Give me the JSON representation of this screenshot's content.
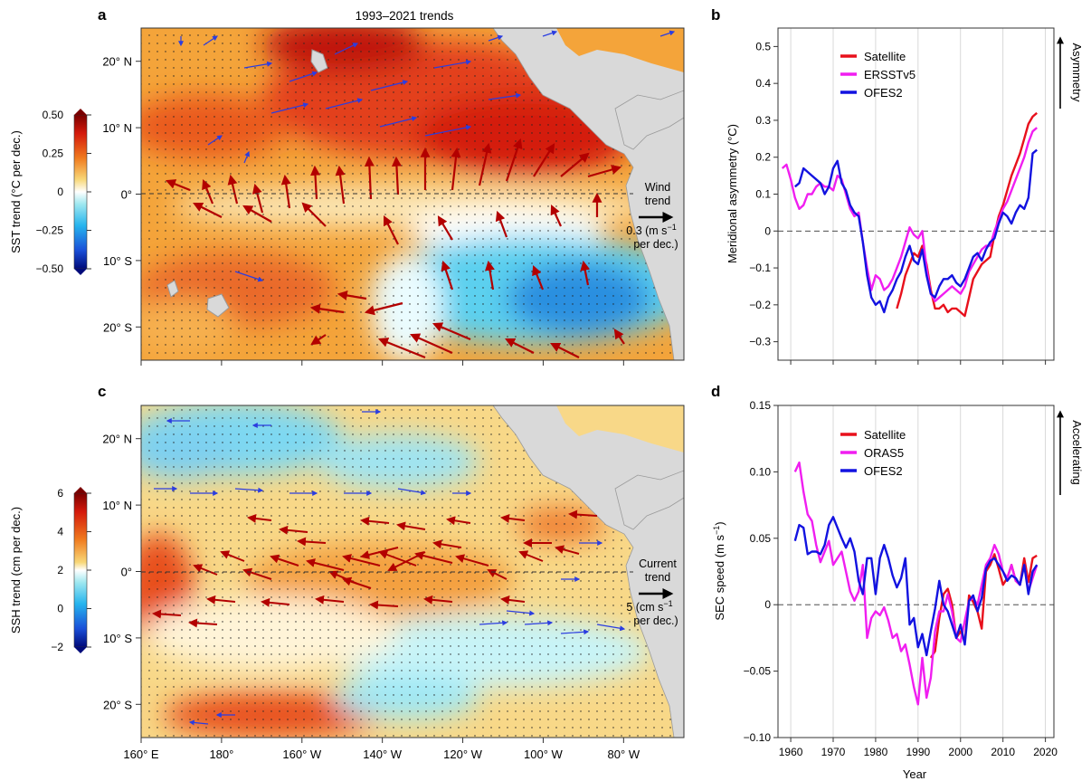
{
  "figure": {
    "panel_a": {
      "letter": "a",
      "title": "1993–2021 trends",
      "colorbar_label": "SST trend (°C per dec.)",
      "colorbar_ticks": [
        "0.50",
        "0.25",
        "0",
        "−0.25",
        "−0.50"
      ],
      "colorbar_values": [
        0.5,
        0.25,
        0,
        -0.25,
        -0.5
      ],
      "lat_ticks": [
        "20° N",
        "10° N",
        "0°",
        "10° S",
        "20° S"
      ],
      "lat_values": [
        20,
        10,
        0,
        -10,
        -20
      ],
      "legend_lines": [
        "Wind",
        "trend",
        "0.3 (m s",
        "per dec.)"
      ],
      "legend_unit_sup": "−1"
    },
    "panel_c": {
      "letter": "c",
      "colorbar_label": "SSH trend (cm per dec.)",
      "colorbar_ticks": [
        "6",
        "4",
        "2",
        "0",
        "−2"
      ],
      "colorbar_values": [
        6,
        4,
        2,
        0,
        -2
      ],
      "lat_ticks": [
        "20° N",
        "10° N",
        "0°",
        "10° S",
        "20° S"
      ],
      "lat_values": [
        20,
        10,
        0,
        -10,
        -20
      ],
      "lon_ticks": [
        "160° E",
        "180°",
        "160° W",
        "140° W",
        "120° W",
        "100° W",
        "80° W"
      ],
      "lon_values": [
        160,
        180,
        200,
        220,
        240,
        260,
        280
      ],
      "legend_lines": [
        "Current",
        "trend",
        "5 (cm s",
        "per dec.)"
      ],
      "legend_unit_sup": "−1"
    },
    "panel_b": {
      "letter": "b",
      "side_label": "Asymmetry",
      "ylabel": "Meridional asymmetry (°C)",
      "legend": [
        "Satellite",
        "ERSSTv5",
        "OFES2"
      ]
    },
    "panel_d": {
      "letter": "d",
      "side_label": "Accelerating",
      "ylabel": "SEC speed (m s",
      "ylabel_sup": "−1",
      "ylabel_end": ")",
      "xlabel": "Year",
      "legend": [
        "Satellite",
        "ORAS5",
        "OFES2"
      ]
    }
  },
  "colors": {
    "satellite": "#e8101c",
    "reanalysis": "#f01ef0",
    "ofes2": "#1212e0",
    "arrow_strong": "#b30000",
    "arrow_weak": "#2b3de0",
    "land": "#d9d9d9"
  },
  "chart_data": [
    {
      "id": "b",
      "type": "line",
      "xlabel": "",
      "ylabel": "Meridional asymmetry (°C)",
      "xlim": [
        1957,
        2022
      ],
      "ylim": [
        -0.35,
        0.55
      ],
      "x_ticks": [
        1960,
        1970,
        1980,
        1990,
        2000,
        2010,
        2020
      ],
      "y_ticks": [
        0.5,
        0.4,
        0.3,
        0.2,
        0.1,
        0,
        -0.1,
        -0.2,
        -0.3
      ],
      "y_tick_labels": [
        "0.5",
        "0.4",
        "0.3",
        "0.2",
        "0.1",
        "0",
        "−0.1",
        "−0.2",
        "−0.3"
      ],
      "grid": "vertical",
      "zero_line": true,
      "legend_position": "top-left",
      "series": [
        {
          "name": "Satellite",
          "color": "#e8101c",
          "x": [
            1985,
            1986,
            1987,
            1988,
            1989,
            1990,
            1991,
            1992,
            1993,
            1994,
            1995,
            1996,
            1997,
            1998,
            1999,
            2000,
            2001,
            2002,
            2003,
            2004,
            2005,
            2006,
            2007,
            2008,
            2009,
            2010,
            2011,
            2012,
            2013,
            2014,
            2015,
            2016,
            2017,
            2018
          ],
          "values": [
            -0.21,
            -0.17,
            -0.12,
            -0.09,
            -0.06,
            -0.07,
            -0.04,
            -0.09,
            -0.16,
            -0.21,
            -0.21,
            -0.2,
            -0.22,
            -0.21,
            -0.21,
            -0.22,
            -0.23,
            -0.18,
            -0.13,
            -0.11,
            -0.09,
            -0.08,
            -0.07,
            -0.01,
            0.04,
            0.07,
            0.11,
            0.15,
            0.18,
            0.21,
            0.25,
            0.29,
            0.31,
            0.32
          ]
        },
        {
          "name": "ERSSTv5",
          "color": "#f01ef0",
          "x": [
            1958,
            1959,
            1960,
            1961,
            1962,
            1963,
            1964,
            1965,
            1966,
            1967,
            1968,
            1969,
            1970,
            1971,
            1972,
            1973,
            1974,
            1975,
            1976,
            1977,
            1978,
            1979,
            1980,
            1981,
            1982,
            1983,
            1984,
            1985,
            1986,
            1987,
            1988,
            1989,
            1990,
            1991,
            1992,
            1993,
            1994,
            1995,
            1996,
            1997,
            1998,
            1999,
            2000,
            2001,
            2002,
            2003,
            2004,
            2005,
            2006,
            2007,
            2008,
            2009,
            2010,
            2011,
            2012,
            2013,
            2014,
            2015,
            2016,
            2017,
            2018
          ],
          "values": [
            0.17,
            0.18,
            0.14,
            0.09,
            0.06,
            0.07,
            0.1,
            0.1,
            0.12,
            0.13,
            0.12,
            0.12,
            0.11,
            0.15,
            0.14,
            0.1,
            0.06,
            0.04,
            0.05,
            -0.03,
            -0.1,
            -0.16,
            -0.12,
            -0.13,
            -0.16,
            -0.15,
            -0.13,
            -0.1,
            -0.07,
            -0.03,
            0.01,
            -0.01,
            -0.02,
            0.0,
            -0.1,
            -0.17,
            -0.19,
            -0.18,
            -0.17,
            -0.16,
            -0.15,
            -0.16,
            -0.17,
            -0.15,
            -0.11,
            -0.09,
            -0.07,
            -0.05,
            -0.04,
            -0.04,
            0.0,
            0.03,
            0.06,
            0.08,
            0.11,
            0.14,
            0.17,
            0.2,
            0.24,
            0.27,
            0.28
          ]
        },
        {
          "name": "OFES2",
          "color": "#1212e0",
          "x": [
            1961,
            1962,
            1963,
            1964,
            1965,
            1966,
            1967,
            1968,
            1969,
            1970,
            1971,
            1972,
            1973,
            1974,
            1975,
            1976,
            1977,
            1978,
            1979,
            1980,
            1981,
            1982,
            1983,
            1984,
            1985,
            1986,
            1987,
            1988,
            1989,
            1990,
            1991,
            1992,
            1993,
            1994,
            1995,
            1996,
            1997,
            1998,
            1999,
            2000,
            2001,
            2002,
            2003,
            2004,
            2005,
            2006,
            2007,
            2008,
            2009,
            2010,
            2011,
            2012,
            2013,
            2014,
            2015,
            2016,
            2017,
            2018
          ],
          "values": [
            0.12,
            0.13,
            0.17,
            0.16,
            0.15,
            0.14,
            0.13,
            0.1,
            0.12,
            0.17,
            0.19,
            0.13,
            0.11,
            0.07,
            0.05,
            0.04,
            -0.03,
            -0.12,
            -0.18,
            -0.2,
            -0.19,
            -0.22,
            -0.18,
            -0.16,
            -0.13,
            -0.11,
            -0.07,
            -0.04,
            -0.08,
            -0.09,
            -0.05,
            -0.12,
            -0.17,
            -0.18,
            -0.15,
            -0.13,
            -0.13,
            -0.12,
            -0.14,
            -0.15,
            -0.13,
            -0.1,
            -0.07,
            -0.06,
            -0.08,
            -0.05,
            -0.03,
            -0.02,
            0.02,
            0.05,
            0.04,
            0.02,
            0.05,
            0.07,
            0.06,
            0.09,
            0.21,
            0.22
          ]
        }
      ]
    },
    {
      "id": "d",
      "type": "line",
      "xlabel": "Year",
      "ylabel": "SEC speed (m s−1)",
      "xlim": [
        1957,
        2022
      ],
      "ylim": [
        -0.1,
        0.15
      ],
      "x_ticks": [
        1960,
        1970,
        1980,
        1990,
        2000,
        2010,
        2020
      ],
      "y_ticks": [
        0.15,
        0.1,
        0.05,
        0,
        -0.05,
        -0.1
      ],
      "y_tick_labels": [
        "0.15",
        "0.10",
        "0.05",
        "0",
        "−0.05",
        "−0.10"
      ],
      "grid": "vertical",
      "zero_line": true,
      "legend_position": "top-left",
      "series": [
        {
          "name": "Satellite",
          "color": "#e8101c",
          "x": [
            1993,
            1994,
            1995,
            1996,
            1997,
            1998,
            1999,
            2000,
            2001,
            2002,
            2003,
            2004,
            2005,
            2006,
            2007,
            2008,
            2009,
            2010,
            2011,
            2012,
            2013,
            2014,
            2015,
            2016,
            2017,
            2018
          ],
          "values": [
            -0.04,
            -0.035,
            -0.01,
            0.008,
            0.012,
            0.0,
            -0.025,
            -0.02,
            -0.028,
            0.007,
            0.002,
            -0.005,
            -0.018,
            0.025,
            0.03,
            0.038,
            0.027,
            0.015,
            0.02,
            0.03,
            0.018,
            0.015,
            0.035,
            0.017,
            0.035,
            0.037
          ]
        },
        {
          "name": "ORAS5",
          "color": "#f01ef0",
          "x": [
            1961,
            1962,
            1963,
            1964,
            1965,
            1966,
            1967,
            1968,
            1969,
            1970,
            1971,
            1972,
            1973,
            1974,
            1975,
            1976,
            1977,
            1978,
            1979,
            1980,
            1981,
            1982,
            1983,
            1984,
            1985,
            1986,
            1987,
            1988,
            1989,
            1990,
            1991,
            1992,
            1993,
            1994,
            1995,
            1996,
            1997,
            1998,
            1999,
            2000,
            2001,
            2002,
            2003,
            2004,
            2005,
            2006,
            2007,
            2008,
            2009,
            2010,
            2011,
            2012,
            2013,
            2014,
            2015,
            2016,
            2017,
            2018
          ],
          "values": [
            0.1,
            0.107,
            0.085,
            0.068,
            0.063,
            0.045,
            0.032,
            0.04,
            0.048,
            0.03,
            0.035,
            0.04,
            0.025,
            0.01,
            0.003,
            0.01,
            0.03,
            -0.025,
            -0.01,
            -0.005,
            -0.008,
            -0.002,
            -0.012,
            -0.025,
            -0.022,
            -0.035,
            -0.03,
            -0.045,
            -0.062,
            -0.075,
            -0.04,
            -0.07,
            -0.055,
            -0.02,
            -0.005,
            -0.005,
            0.008,
            -0.005,
            -0.025,
            -0.028,
            -0.012,
            0.003,
            0.005,
            0.0,
            0.015,
            0.03,
            0.035,
            0.045,
            0.038,
            0.025,
            0.02,
            0.03,
            0.018,
            0.015,
            0.03,
            0.01,
            0.02,
            0.03
          ]
        },
        {
          "name": "OFES2",
          "color": "#1212e0",
          "x": [
            1961,
            1962,
            1963,
            1964,
            1965,
            1966,
            1967,
            1968,
            1969,
            1970,
            1971,
            1972,
            1973,
            1974,
            1975,
            1976,
            1977,
            1978,
            1979,
            1980,
            1981,
            1982,
            1983,
            1984,
            1985,
            1986,
            1987,
            1988,
            1989,
            1990,
            1991,
            1992,
            1993,
            1994,
            1995,
            1996,
            1997,
            1998,
            1999,
            2000,
            2001,
            2002,
            2003,
            2004,
            2005,
            2006,
            2007,
            2008,
            2009,
            2010,
            2011,
            2012,
            2013,
            2014,
            2015,
            2016,
            2017,
            2018
          ],
          "values": [
            0.048,
            0.06,
            0.058,
            0.038,
            0.04,
            0.04,
            0.038,
            0.045,
            0.06,
            0.066,
            0.058,
            0.05,
            0.043,
            0.05,
            0.04,
            0.018,
            0.008,
            0.035,
            0.035,
            0.008,
            0.035,
            0.045,
            0.035,
            0.022,
            0.013,
            0.02,
            0.035,
            -0.015,
            -0.01,
            -0.032,
            -0.022,
            -0.038,
            -0.02,
            -0.003,
            0.018,
            0.0,
            -0.005,
            -0.015,
            -0.025,
            -0.015,
            -0.03,
            0.003,
            0.007,
            -0.005,
            0.005,
            0.027,
            0.033,
            0.035,
            0.03,
            0.025,
            0.018,
            0.022,
            0.02,
            0.015,
            0.03,
            0.008,
            0.025,
            0.03
          ]
        }
      ]
    }
  ]
}
